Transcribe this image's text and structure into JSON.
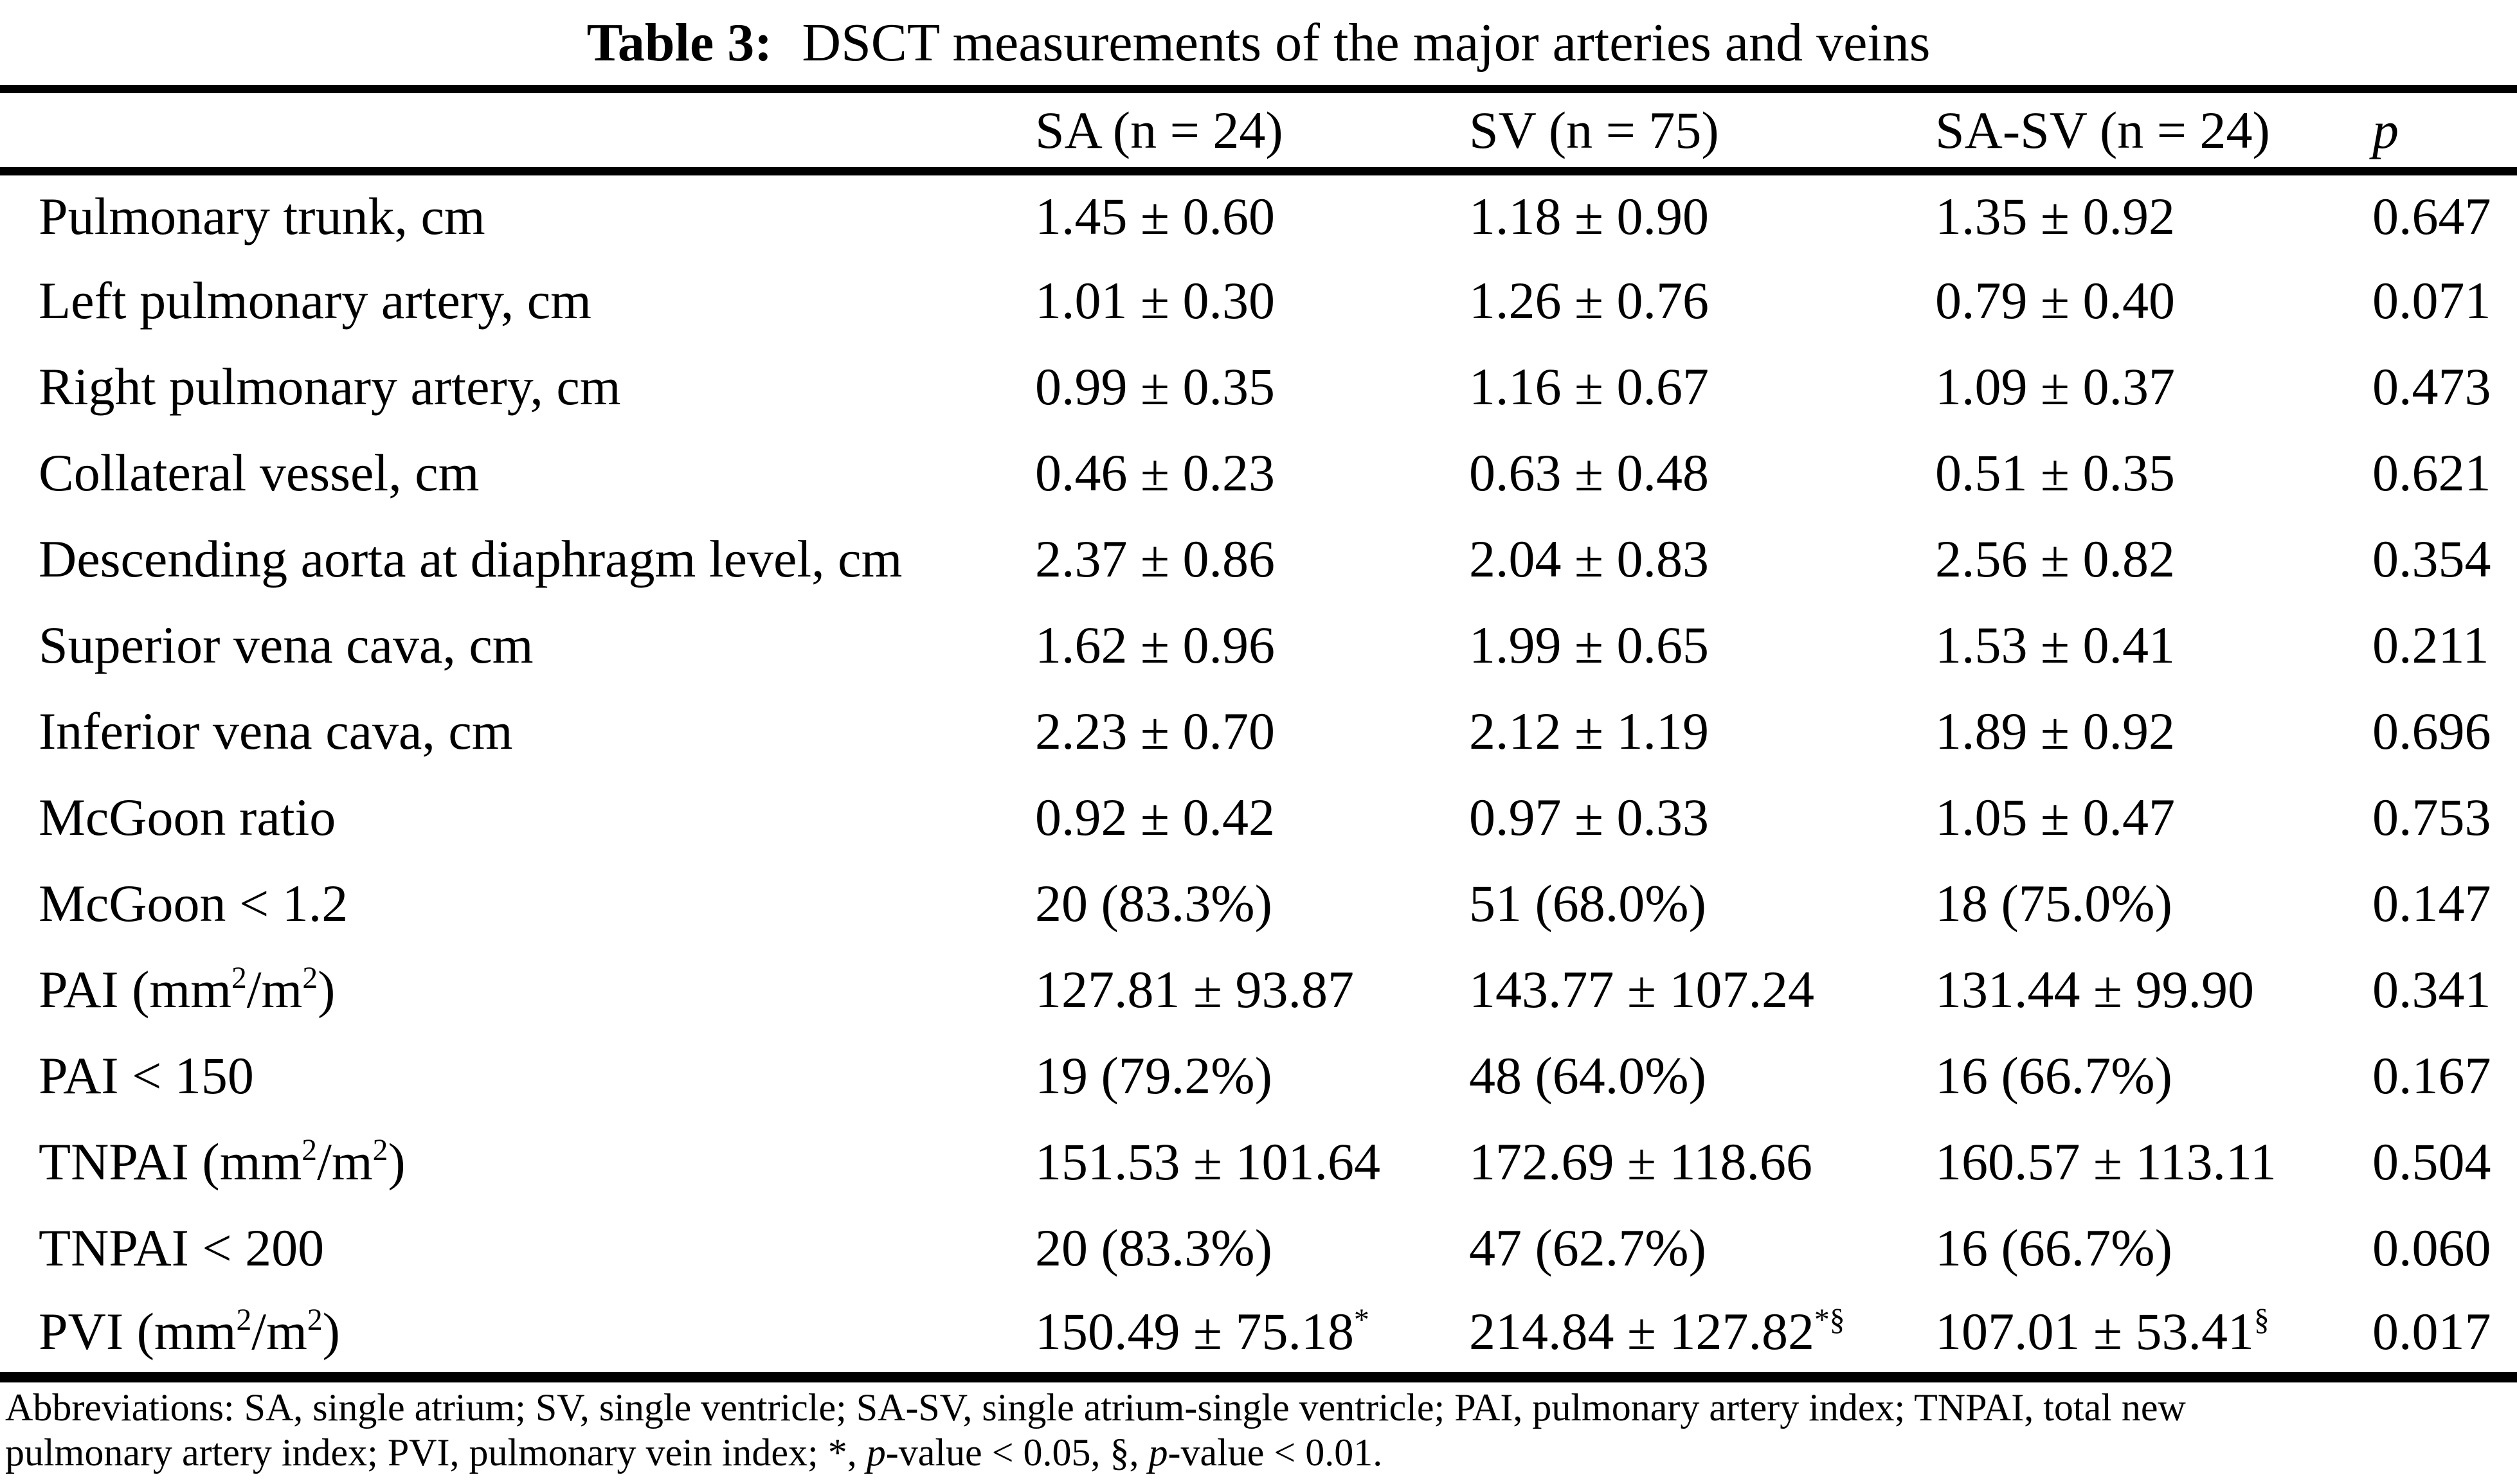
{
  "colors": {
    "text": "#000000",
    "background": "#ffffff"
  },
  "title": {
    "label": "Table 3:",
    "text": "DSCT measurements of the major arteries and veins"
  },
  "table": {
    "headers": [
      "SA (n = 24)",
      "SV (n = 75)",
      "SA-SV (n = 24)",
      "p"
    ],
    "rows": [
      {
        "label": "Pulmonary trunk, cm",
        "values": [
          "1.45 ± 0.60",
          "1.18 ± 0.90",
          "1.35 ± 0.92",
          "0.647"
        ]
      },
      {
        "label": "Left pulmonary artery, cm",
        "values": [
          "1.01 ± 0.30",
          "1.26 ± 0.76",
          "0.79 ± 0.40",
          "0.071"
        ]
      },
      {
        "label": "Right pulmonary artery, cm",
        "values": [
          "0.99 ± 0.35",
          "1.16 ± 0.67",
          "1.09 ± 0.37",
          "0.473"
        ]
      },
      {
        "label": "Collateral vessel, cm",
        "values": [
          "0.46 ± 0.23",
          "0.63 ± 0.48",
          "0.51 ± 0.35",
          "0.621"
        ]
      },
      {
        "label": "Descending aorta at diaphragm level, cm",
        "values": [
          "2.37 ± 0.86",
          "2.04 ± 0.83",
          "2.56 ± 0.82",
          "0.354"
        ]
      },
      {
        "label": "Superior vena cava, cm",
        "values": [
          "1.62 ± 0.96",
          "1.99 ± 0.65",
          "1.53 ± 0.41",
          "0.211"
        ]
      },
      {
        "label": "Inferior vena cava, cm",
        "values": [
          "2.23 ± 0.70",
          "2.12 ± 1.19",
          "1.89 ± 0.92",
          "0.696"
        ]
      },
      {
        "label": "McGoon ratio",
        "values": [
          "0.92 ± 0.42",
          "0.97 ± 0.33",
          "1.05 ± 0.47",
          "0.753"
        ]
      },
      {
        "label": "McGoon < 1.2",
        "values": [
          "20 (83.3%)",
          "51 (68.0%)",
          "18 (75.0%)",
          "0.147"
        ]
      },
      {
        "label": "PAI (mm^{2}/m^{2})",
        "values": [
          "127.81 ± 93.87",
          "143.77 ± 107.24",
          "131.44 ± 99.90",
          "0.341"
        ]
      },
      {
        "label": "PAI < 150",
        "values": [
          "19 (79.2%)",
          "48 (64.0%)",
          "16 (66.7%)",
          "0.167"
        ]
      },
      {
        "label": "TNPAI (mm^{2}/m^{2})",
        "values": [
          "151.53 ± 101.64",
          "172.69 ± 118.66",
          "160.57 ± 113.11",
          "0.504"
        ]
      },
      {
        "label": "TNPAI < 200",
        "values": [
          "20 (83.3%)",
          "47 (62.7%)",
          "16 (66.7%)",
          "0.060"
        ]
      },
      {
        "label": "PVI (mm^{2}/m^{2})",
        "values": [
          "150.49 ± 75.18^{*}",
          "214.84 ± 127.82^{*§}",
          "107.01 ± 53.41^{§}",
          "0.017"
        ]
      }
    ]
  },
  "footnote": {
    "line1": "Abbreviations: SA, single atrium; SV, single ventricle; SA-SV, single atrium-single ventricle; PAI, pulmonary artery index; TNPAI, total new",
    "line2_segments": [
      {
        "t": "pulmonary artery index; PVI, pulmonary vein index; *, "
      },
      {
        "t": "p",
        "i": true
      },
      {
        "t": "-value < 0.05, §, "
      },
      {
        "t": "p",
        "i": true
      },
      {
        "t": "-value < 0.01."
      }
    ]
  }
}
